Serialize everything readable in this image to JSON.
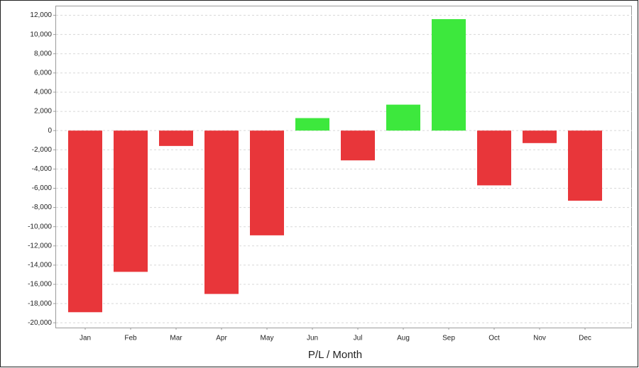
{
  "chart_data": {
    "type": "bar",
    "x_label": "P/L / Month",
    "categories": [
      "Jan",
      "Feb",
      "Mar",
      "Apr",
      "May",
      "Jun",
      "Jul",
      "Aug",
      "Sep",
      "Oct",
      "Nov",
      "Dec"
    ],
    "values": [
      -18900,
      -14700,
      -1600,
      -17000,
      -10900,
      1300,
      -3100,
      2700,
      11600,
      -5700,
      -1300,
      -7300
    ],
    "positive_color": "#3de83d",
    "negative_color": "#e8363a",
    "ylim": [
      -20500,
      13000
    ],
    "yticks": [
      {
        "value": -20000,
        "label": "-20,000"
      },
      {
        "value": -18000,
        "label": "-18,000"
      },
      {
        "value": -16000,
        "label": "-16,000"
      },
      {
        "value": -14000,
        "label": "-14,000"
      },
      {
        "value": -12000,
        "label": "-12,000"
      },
      {
        "value": -10000,
        "label": "-10,000"
      },
      {
        "value": -8000,
        "label": "-8,000"
      },
      {
        "value": -6000,
        "label": "-6,000"
      },
      {
        "value": -4000,
        "label": "-4,000"
      },
      {
        "value": -2000,
        "label": "-2,000"
      },
      0,
      {
        "value": 2000,
        "label": "2,000"
      },
      {
        "value": 4000,
        "label": "4,000"
      },
      {
        "value": 6000,
        "label": "6,000"
      },
      {
        "value": 8000,
        "label": "8,000"
      },
      {
        "value": 10000,
        "label": "10,000"
      },
      {
        "value": 12000,
        "label": "12,000"
      }
    ],
    "grid": true
  }
}
